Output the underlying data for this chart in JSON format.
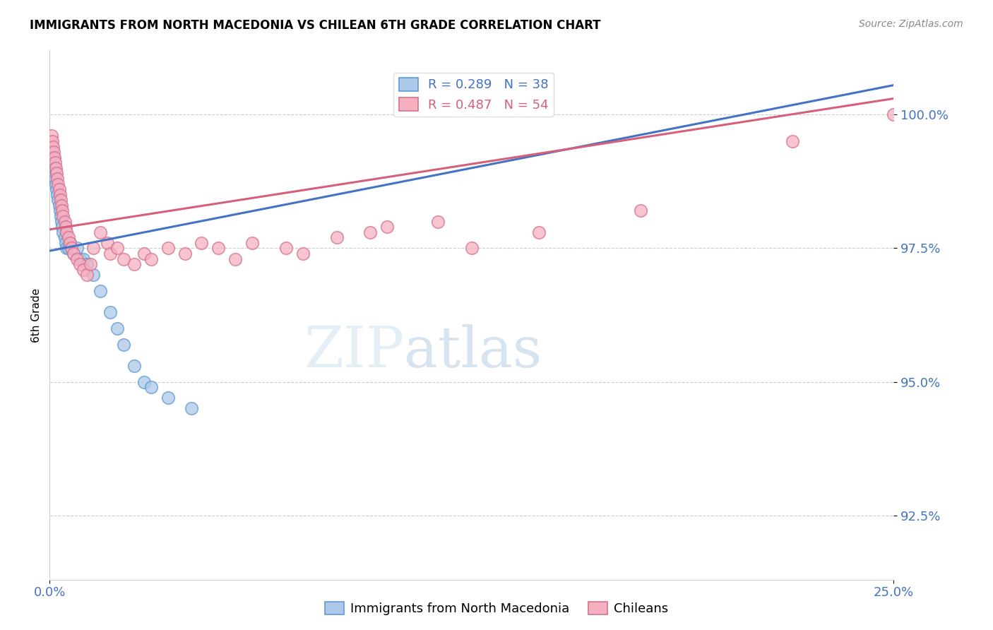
{
  "title": "IMMIGRANTS FROM NORTH MACEDONIA VS CHILEAN 6TH GRADE CORRELATION CHART",
  "source": "Source: ZipAtlas.com",
  "ylabel": "6th Grade",
  "yticks": [
    92.5,
    95.0,
    97.5,
    100.0
  ],
  "ytick_labels": [
    "92.5%",
    "95.0%",
    "97.5%",
    "100.0%"
  ],
  "xlim": [
    0.0,
    25.0
  ],
  "ylim": [
    91.3,
    101.2
  ],
  "legend_blue_r": "R = 0.289",
  "legend_blue_n": "N = 38",
  "legend_pink_r": "R = 0.487",
  "legend_pink_n": "N = 54",
  "legend_label_blue": "Immigrants from North Macedonia",
  "legend_label_pink": "Chileans",
  "blue_face": "#adc8e8",
  "blue_edge": "#5b9bd5",
  "pink_face": "#f5b0c0",
  "pink_edge": "#d47090",
  "blue_line": "#4472c4",
  "pink_line": "#d4607a",
  "watermark_zip": "ZIP",
  "watermark_atlas": "atlas",
  "blue_trend_x0": 0.0,
  "blue_trend_y0": 97.45,
  "blue_trend_x1": 25.0,
  "blue_trend_y1": 100.55,
  "pink_trend_x0": 0.0,
  "pink_trend_y0": 97.85,
  "pink_trend_x1": 25.0,
  "pink_trend_y1": 100.3,
  "blue_x": [
    0.05,
    0.07,
    0.08,
    0.1,
    0.12,
    0.15,
    0.17,
    0.18,
    0.2,
    0.22,
    0.25,
    0.28,
    0.3,
    0.33,
    0.35,
    0.38,
    0.4,
    0.45,
    0.48,
    0.5,
    0.55,
    0.6,
    0.65,
    0.7,
    0.8,
    0.9,
    1.0,
    1.1,
    1.3,
    1.5,
    1.8,
    2.0,
    2.2,
    2.5,
    2.8,
    3.0,
    3.5,
    4.2
  ],
  "blue_y": [
    99.3,
    99.1,
    99.0,
    98.9,
    99.2,
    99.0,
    98.8,
    98.7,
    98.6,
    98.5,
    98.4,
    98.3,
    98.2,
    98.1,
    98.0,
    97.9,
    97.8,
    97.7,
    97.6,
    97.5,
    97.5,
    97.6,
    97.5,
    97.4,
    97.5,
    97.3,
    97.3,
    97.2,
    97.0,
    96.7,
    96.3,
    96.0,
    95.7,
    95.3,
    95.0,
    94.9,
    94.7,
    94.5
  ],
  "pink_x": [
    0.05,
    0.08,
    0.1,
    0.12,
    0.15,
    0.17,
    0.18,
    0.2,
    0.22,
    0.25,
    0.28,
    0.3,
    0.33,
    0.35,
    0.38,
    0.4,
    0.45,
    0.48,
    0.5,
    0.55,
    0.6,
    0.65,
    0.7,
    0.8,
    0.9,
    1.0,
    1.1,
    1.2,
    1.3,
    1.5,
    1.7,
    1.8,
    2.0,
    2.2,
    2.5,
    2.8,
    3.0,
    3.5,
    4.0,
    4.5,
    5.0,
    5.5,
    6.0,
    7.0,
    7.5,
    8.5,
    9.5,
    10.0,
    11.5,
    12.5,
    14.5,
    17.5,
    22.0,
    25.0
  ],
  "pink_y": [
    99.6,
    99.5,
    99.4,
    99.3,
    99.2,
    99.1,
    99.0,
    98.9,
    98.8,
    98.7,
    98.6,
    98.5,
    98.4,
    98.3,
    98.2,
    98.1,
    98.0,
    97.9,
    97.8,
    97.7,
    97.6,
    97.5,
    97.4,
    97.3,
    97.2,
    97.1,
    97.0,
    97.2,
    97.5,
    97.8,
    97.6,
    97.4,
    97.5,
    97.3,
    97.2,
    97.4,
    97.3,
    97.5,
    97.4,
    97.6,
    97.5,
    97.3,
    97.6,
    97.5,
    97.4,
    97.7,
    97.8,
    97.9,
    98.0,
    97.5,
    97.8,
    98.2,
    99.5,
    100.0
  ]
}
